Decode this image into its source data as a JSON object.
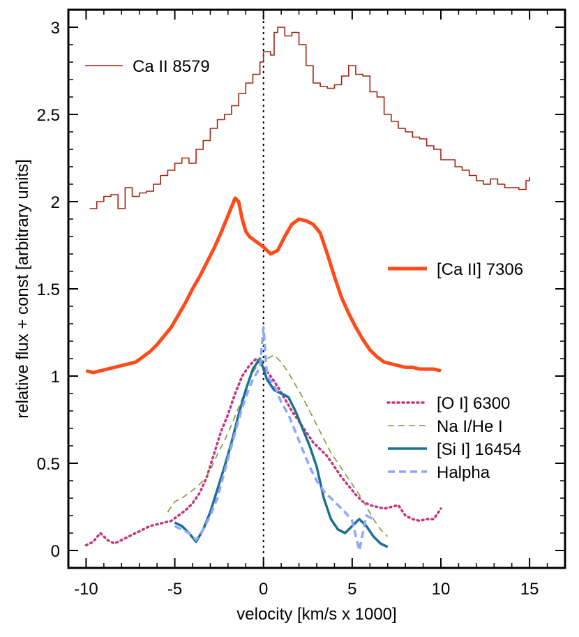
{
  "chart_data": {
    "type": "line",
    "xlabel": "velocity [km/s x 1000]",
    "ylabel": "relative flux + const [arbitrary units]",
    "xlim": [
      -11,
      17
    ],
    "ylim": [
      -0.1,
      3.1
    ],
    "xticks": [
      -10,
      -5,
      0,
      5,
      10,
      15
    ],
    "yticks": [
      0,
      0.5,
      1,
      1.5,
      2,
      2.5,
      3
    ],
    "xtick_labels": [
      "-10",
      "-5",
      "0",
      "5",
      "10",
      "15"
    ],
    "ytick_labels": [
      "0",
      "0.5",
      "1",
      "1.5",
      "2",
      "2.5",
      "3"
    ],
    "reference_line_x": 0,
    "grid": false,
    "series": [
      {
        "name": "Ca II 8579",
        "color": "#a0230f",
        "style": "steps",
        "x": [
          -9.8,
          -9.4,
          -9,
          -8.6,
          -8.2,
          -7.8,
          -7.4,
          -7,
          -6.6,
          -6.2,
          -5.8,
          -5.4,
          -5,
          -4.6,
          -4.2,
          -3.8,
          -3.4,
          -3,
          -2.6,
          -2.2,
          -1.8,
          -1.4,
          -1,
          -0.6,
          -0.2,
          0,
          0.4,
          0.6,
          0.8,
          1.2,
          1.6,
          2,
          2.4,
          2.8,
          3.2,
          3.6,
          4,
          4.4,
          4.8,
          5.2,
          5.6,
          6,
          6.4,
          6.8,
          7.2,
          7.6,
          8,
          8.4,
          8.8,
          9.2,
          9.6,
          10,
          10.4,
          10.8,
          11.2,
          11.6,
          12,
          12.4,
          12.8,
          13.2,
          13.6,
          14,
          14.4,
          14.8,
          15
        ],
        "y": [
          1.96,
          2,
          2.03,
          2.04,
          1.96,
          2.08,
          2.03,
          2.05,
          2.06,
          2.1,
          2.15,
          2.18,
          2.22,
          2.25,
          2.22,
          2.3,
          2.35,
          2.42,
          2.47,
          2.5,
          2.55,
          2.62,
          2.68,
          2.73,
          2.8,
          2.86,
          2.84,
          2.97,
          3.0,
          2.95,
          2.97,
          2.9,
          2.78,
          2.68,
          2.66,
          2.65,
          2.67,
          2.72,
          2.78,
          2.73,
          2.72,
          2.63,
          2.6,
          2.5,
          2.46,
          2.42,
          2.4,
          2.37,
          2.36,
          2.32,
          2.3,
          2.24,
          2.24,
          2.2,
          2.18,
          2.15,
          2.12,
          2.1,
          2.13,
          2.1,
          2.08,
          2.08,
          2.07,
          2.12,
          2.14
        ]
      },
      {
        "name": "[Ca II] 7306",
        "color": "#ff4a1a",
        "style": "thick",
        "x": [
          -10,
          -9.6,
          -9.2,
          -8.8,
          -8.4,
          -8,
          -7.6,
          -7.2,
          -6.8,
          -6.4,
          -6,
          -5.6,
          -5.2,
          -4.8,
          -4.4,
          -4,
          -3.6,
          -3.2,
          -2.8,
          -2.4,
          -2.0,
          -1.6,
          -1.4,
          -1.2,
          -1.0,
          -0.8,
          -0.4,
          0,
          0.4,
          0.8,
          1.2,
          1.6,
          2.0,
          2.4,
          2.8,
          3.2,
          3.6,
          4,
          4.4,
          4.8,
          5.2,
          5.6,
          6,
          6.4,
          6.8,
          7.2,
          7.6,
          8,
          8.4,
          8.8,
          9.2,
          9.6,
          10
        ],
        "y": [
          1.03,
          1.02,
          1.03,
          1.04,
          1.05,
          1.06,
          1.07,
          1.08,
          1.11,
          1.14,
          1.18,
          1.23,
          1.28,
          1.35,
          1.42,
          1.5,
          1.57,
          1.65,
          1.73,
          1.82,
          1.92,
          2.02,
          2.0,
          1.9,
          1.83,
          1.8,
          1.77,
          1.74,
          1.7,
          1.72,
          1.8,
          1.87,
          1.9,
          1.89,
          1.87,
          1.82,
          1.7,
          1.57,
          1.45,
          1.36,
          1.28,
          1.21,
          1.15,
          1.11,
          1.08,
          1.07,
          1.06,
          1.05,
          1.05,
          1.04,
          1.04,
          1.04,
          1.03
        ]
      },
      {
        "name": "[O I] 6300",
        "color": "#c8347a",
        "style": "dotted",
        "x": [
          -10,
          -9.6,
          -9.2,
          -8.8,
          -8.4,
          -8,
          -7.6,
          -7.2,
          -6.8,
          -6.4,
          -6,
          -5.6,
          -5.2,
          -4.8,
          -4.4,
          -4,
          -3.6,
          -3.2,
          -2.8,
          -2.4,
          -2,
          -1.6,
          -1.2,
          -0.8,
          -0.4,
          0,
          0.4,
          0.8,
          1.2,
          1.6,
          2,
          2.4,
          2.8,
          3.2,
          3.6,
          4,
          4.4,
          4.8,
          5.2,
          5.6,
          6,
          6.4,
          6.8,
          7.2,
          7.6,
          8,
          8.4,
          8.8,
          9.2,
          9.6,
          10
        ],
        "y": [
          0.03,
          0.05,
          0.1,
          0.06,
          0.04,
          0.06,
          0.08,
          0.1,
          0.12,
          0.14,
          0.15,
          0.16,
          0.17,
          0.2,
          0.23,
          0.27,
          0.33,
          0.42,
          0.55,
          0.68,
          0.78,
          0.9,
          1.0,
          1.06,
          1.1,
          1.05,
          1.0,
          0.94,
          0.87,
          0.8,
          0.74,
          0.68,
          0.62,
          0.58,
          0.54,
          0.48,
          0.42,
          0.37,
          0.32,
          0.28,
          0.26,
          0.25,
          0.24,
          0.25,
          0.26,
          0.2,
          0.18,
          0.17,
          0.18,
          0.18,
          0.24
        ]
      },
      {
        "name": "Na I/He I",
        "color": "#7a9a3c",
        "style": "dashed",
        "x": [
          -5.4,
          -5,
          -4.6,
          -4.2,
          -3.8,
          -3.4,
          -3,
          -2.6,
          -2.2,
          -1.8,
          -1.4,
          -1,
          -0.6,
          -0.2,
          0.2,
          0.6,
          1,
          1.4,
          1.8,
          2.2,
          2.6,
          3,
          3.4,
          3.8,
          4.2,
          4.6,
          5,
          5.4,
          5.8,
          6.2,
          6.6,
          7
        ],
        "y": [
          0.22,
          0.28,
          0.3,
          0.33,
          0.36,
          0.4,
          0.46,
          0.55,
          0.63,
          0.72,
          0.82,
          0.92,
          1.02,
          1.08,
          1.1,
          1.12,
          1.08,
          1.02,
          0.95,
          0.88,
          0.8,
          0.72,
          0.64,
          0.56,
          0.5,
          0.44,
          0.38,
          0.32,
          0.25,
          0.18,
          0.12,
          0.08
        ]
      },
      {
        "name": "[Si I] 16454",
        "color": "#1a7090",
        "style": "solid-thick",
        "x": [
          -5,
          -4.6,
          -4.2,
          -3.8,
          -3.4,
          -3,
          -2.6,
          -2.2,
          -1.8,
          -1.4,
          -1,
          -0.6,
          -0.2,
          0.2,
          0.6,
          1,
          1.4,
          1.8,
          2.2,
          2.6,
          3,
          3.4,
          3.8,
          4.2,
          4.6,
          5,
          5.4,
          5.8,
          6.2,
          6.6,
          7
        ],
        "y": [
          0.16,
          0.14,
          0.1,
          0.05,
          0.12,
          0.22,
          0.35,
          0.48,
          0.62,
          0.78,
          0.92,
          1.04,
          1.1,
          0.98,
          0.92,
          0.9,
          0.88,
          0.8,
          0.7,
          0.6,
          0.48,
          0.3,
          0.18,
          0.12,
          0.1,
          0.14,
          0.18,
          0.14,
          0.08,
          0.04,
          0.02
        ]
      },
      {
        "name": "Halpha",
        "color": "#8ea6ff",
        "style": "dashed-thick",
        "x": [
          -5,
          -4.6,
          -4.2,
          -3.8,
          -3.4,
          -3,
          -2.6,
          -2.2,
          -1.8,
          -1.4,
          -1,
          -0.6,
          -0.2,
          0,
          0.2,
          0.6,
          1,
          1.4,
          1.8,
          2.2,
          2.6,
          3,
          3.4,
          3.8,
          4.2,
          4.6,
          5,
          5.4,
          5.8,
          6.2
        ],
        "y": [
          0.14,
          0.12,
          0.1,
          0.06,
          0.12,
          0.2,
          0.3,
          0.45,
          0.6,
          0.75,
          0.88,
          0.98,
          1.05,
          1.28,
          1.0,
          0.95,
          0.85,
          0.78,
          0.68,
          0.58,
          0.48,
          0.4,
          0.34,
          0.3,
          0.26,
          0.22,
          0.17,
          0.0,
          0.2,
          0.18
        ]
      }
    ],
    "legend": [
      {
        "label": "Ca II 8579",
        "placement": "top-left"
      },
      {
        "label": "[Ca II] 7306",
        "placement": "middle-right"
      },
      {
        "label": "[O I] 6300",
        "placement": "bottom-right"
      },
      {
        "label": "Na I/He I",
        "placement": "bottom-right"
      },
      {
        "label": "[Si I] 16454",
        "placement": "bottom-right"
      },
      {
        "label": "Halpha",
        "placement": "bottom-right"
      }
    ]
  }
}
